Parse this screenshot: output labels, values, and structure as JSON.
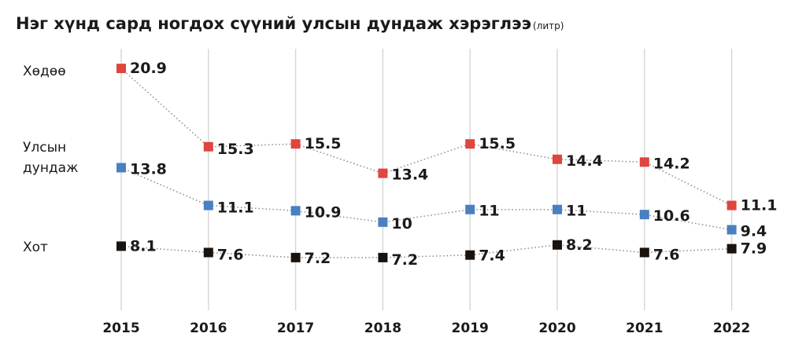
{
  "chart_data": {
    "type": "line",
    "title": "Нэг хүнд сард ногдох сүүний улсын дундаж хэрэглээ",
    "unit": "(литр)",
    "x": [
      "2015",
      "2016",
      "2017",
      "2018",
      "2019",
      "2020",
      "2021",
      "2022"
    ],
    "series": [
      {
        "name": "Хөдөө",
        "color": "#e0453e",
        "values": [
          20.9,
          15.3,
          15.5,
          13.4,
          15.5,
          14.4,
          14.2,
          11.1
        ]
      },
      {
        "name_lines": [
          "Улсын",
          "дундаж"
        ],
        "color": "#4a7fc1",
        "values": [
          13.8,
          11.1,
          10.9,
          10,
          11,
          11,
          10.6,
          9.4
        ]
      },
      {
        "name": "Хот",
        "color": "#1a120c",
        "values": [
          8.1,
          7.6,
          7.2,
          7.2,
          7.4,
          8.2,
          7.6,
          7.9
        ]
      }
    ],
    "value_labels": [
      [
        "20.9",
        "15.3",
        "15.5",
        "13.4",
        "15.5",
        "14.4",
        "14.2",
        "11.1"
      ],
      [
        "13.8",
        "11.1",
        "10.9",
        "10",
        "11",
        "11",
        "10.6",
        "9.4"
      ],
      [
        "8.1",
        "7.6",
        "7.2",
        "7.2",
        "7.4",
        "8.2",
        "7.6",
        "7.9"
      ]
    ],
    "grid": "vertical",
    "marker": "square",
    "line_style": "dotted"
  }
}
